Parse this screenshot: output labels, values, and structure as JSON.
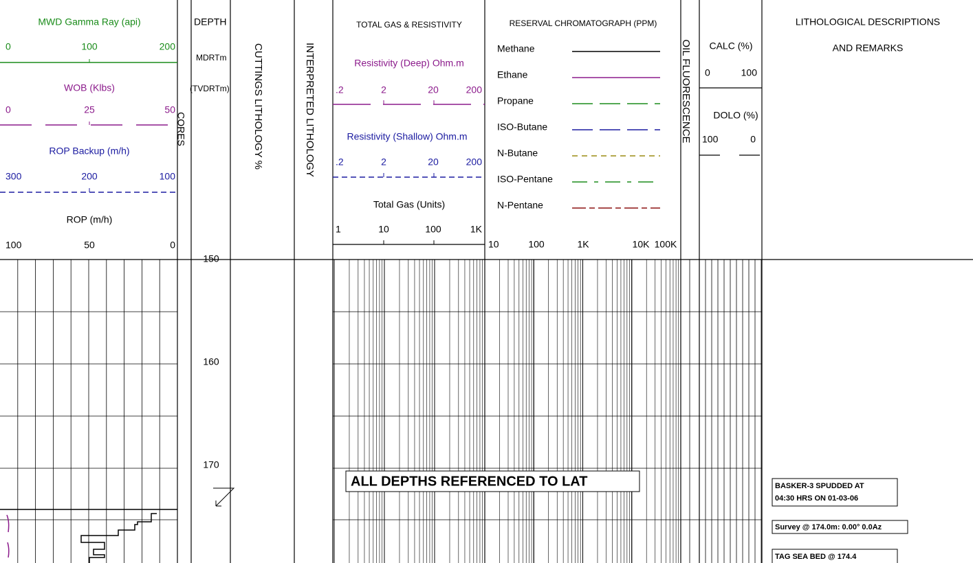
{
  "tracks": {
    "gamma": {
      "title": "MWD Gamma Ray (api)",
      "scale": [
        "0",
        "100",
        "200"
      ]
    },
    "wob": {
      "title": "WOB (Klbs)",
      "scale": [
        "0",
        "25",
        "50"
      ]
    },
    "rop_backup": {
      "title": "ROP Backup (m/h)",
      "scale": [
        "300",
        "200",
        "100"
      ]
    },
    "rop": {
      "title": "ROP (m/h)",
      "scale": [
        "100",
        "50",
        "0"
      ]
    },
    "cores": "CORES",
    "depth": {
      "title": "DEPTH",
      "units": [
        "MDRTm",
        "(TVDRTm)"
      ]
    },
    "cuttings": "CUTTINGS LITHOLOGY %",
    "interpreted": "INTERPRETED LITHOLOGY",
    "gas": {
      "title": "TOTAL GAS & RESISTIVITY",
      "deep": {
        "title": "Resistivity (Deep) Ohm.m",
        "scale": [
          ".2",
          "2",
          "20",
          "200"
        ]
      },
      "shallow": {
        "title": "Resistivity (Shallow) Ohm.m",
        "scale": [
          ".2",
          "2",
          "20",
          "200"
        ]
      },
      "total": {
        "title": "Total Gas (Units)",
        "scale": [
          "1",
          "10",
          "100",
          "1K"
        ]
      }
    },
    "chromatograph": {
      "title": "RESERVAL CHROMATOGRAPH (PPM)",
      "legend": [
        {
          "name": "Methane",
          "color": "#000000"
        },
        {
          "name": "Ethane",
          "color": "#8b1a8b"
        },
        {
          "name": "Propane",
          "color": "#1a8c1a"
        },
        {
          "name": "ISO-Butane",
          "color": "#1a1aa0"
        },
        {
          "name": "N-Butane",
          "color": "#9a8a10"
        },
        {
          "name": "ISO-Pentane",
          "color": "#1a8c1a"
        },
        {
          "name": "N-Pentane",
          "color": "#8b1010"
        }
      ],
      "scale": [
        "10",
        "100",
        "1K",
        "10K",
        "100K"
      ]
    },
    "fluorescence": "OIL FLUORESCENCE",
    "calc": {
      "title": "CALC (%)",
      "scale": [
        "0",
        "100"
      ]
    },
    "dolo": {
      "title": "DOLO (%)",
      "scale": [
        "100",
        "0"
      ]
    },
    "remarks": {
      "title": [
        "LITHOLOGICAL DESCRIPTIONS",
        "AND REMARKS"
      ]
    }
  },
  "depth_labels": [
    "150",
    "160",
    "170"
  ],
  "banner": "ALL DEPTHS REFERENCED TO LAT",
  "notes": [
    [
      "BASKER-3 SPUDDED AT",
      "04:30 HRS ON 01-03-06"
    ],
    [
      "Survey @ 174.0m: 0.00° 0.0Az"
    ],
    [
      "TAG SEA BED @ 174.4"
    ]
  ]
}
